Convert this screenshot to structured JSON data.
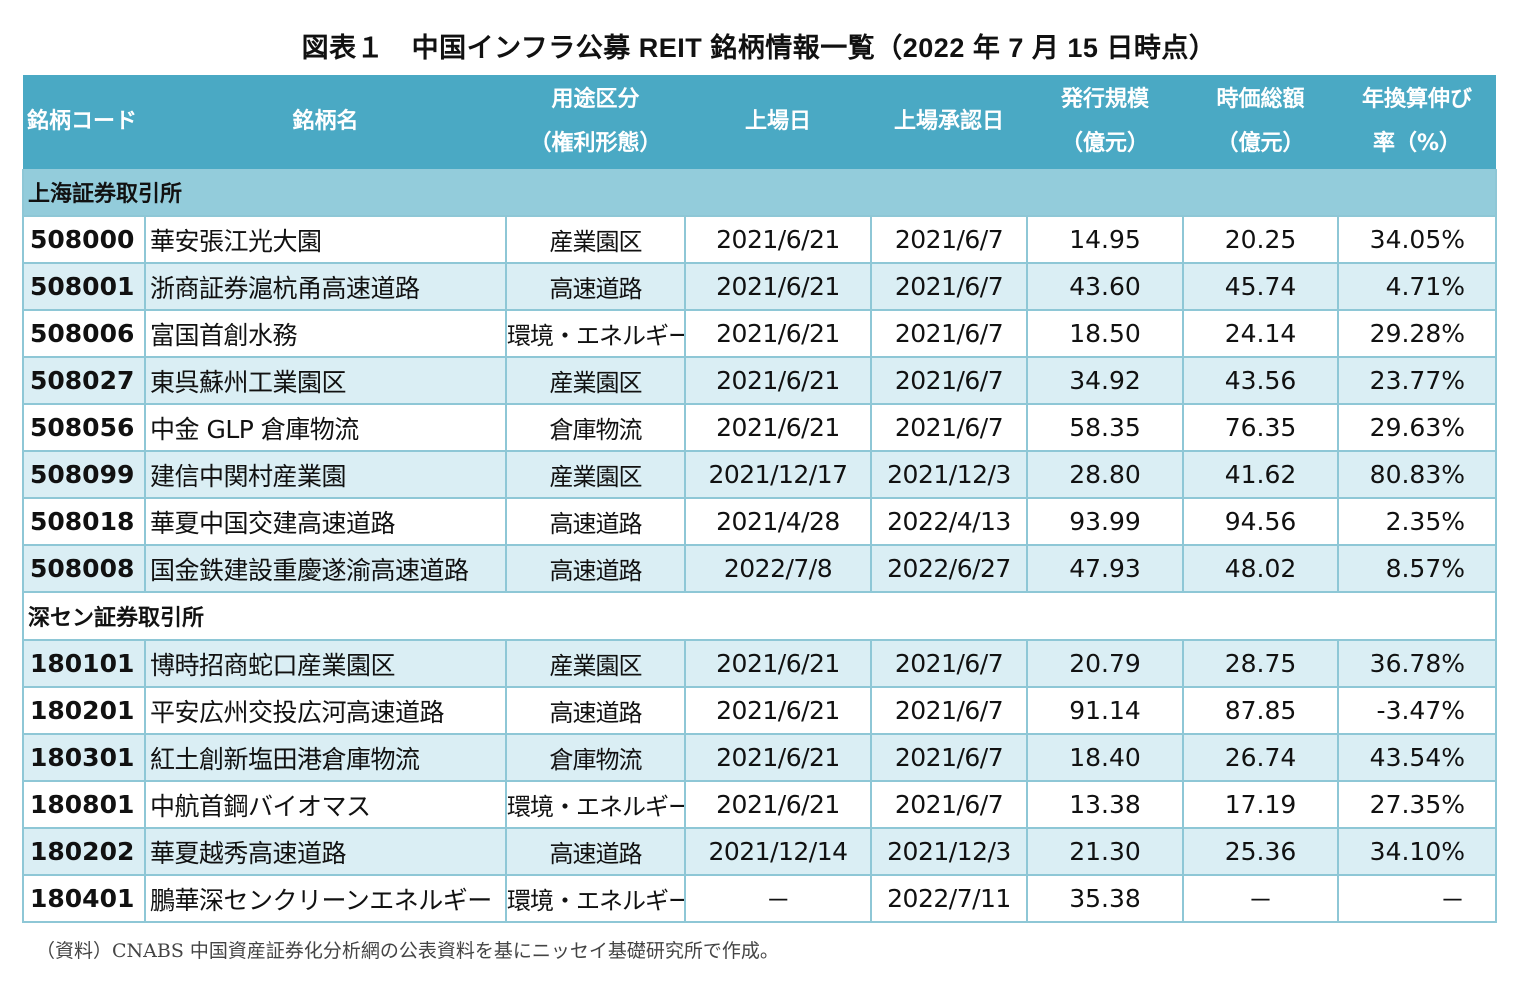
{
  "title": "図表１　中国インフラ公募 REIT 銘柄情報一覧（2022 年 7 月 15 日時点）",
  "colors": {
    "header_bg": "#4aa9c4",
    "header_text": "#ffffff",
    "section_bg_shanghai": "#93ccdb",
    "row_alt_bg": "#daeef4",
    "border": "#8ec7d6"
  },
  "table": {
    "headers": [
      {
        "line1": "銘柄コード",
        "line2": ""
      },
      {
        "line1": "銘柄名",
        "line2": ""
      },
      {
        "line1": "用途区分",
        "line2": "（権利形態）"
      },
      {
        "line1": "上場日",
        "line2": ""
      },
      {
        "line1": "上場承認日",
        "line2": ""
      },
      {
        "line1": "発行規模",
        "line2": "（億元）"
      },
      {
        "line1": "時価総額",
        "line2": "（億元）"
      },
      {
        "line1": "年換算伸び",
        "line2": "率（%）"
      }
    ],
    "sections": [
      {
        "label": "上海証券取引所",
        "rows": [
          {
            "code": "508000",
            "name": "華安張江光大園",
            "use": "産業園区",
            "listing_date": "2021/6/21",
            "approval_date": "2021/6/7",
            "issue_size": "14.95",
            "market_cap": "20.25",
            "growth": "34.05%"
          },
          {
            "code": "508001",
            "name": "浙商証券滬杭甬高速道路",
            "use": "高速道路",
            "listing_date": "2021/6/21",
            "approval_date": "2021/6/7",
            "issue_size": "43.60",
            "market_cap": "45.74",
            "growth": "4.71%"
          },
          {
            "code": "508006",
            "name": "富国首創水務",
            "use": "環境・エネルギー",
            "listing_date": "2021/6/21",
            "approval_date": "2021/6/7",
            "issue_size": "18.50",
            "market_cap": "24.14",
            "growth": "29.28%"
          },
          {
            "code": "508027",
            "name": "東呉蘇州工業園区",
            "use": "産業園区",
            "listing_date": "2021/6/21",
            "approval_date": "2021/6/7",
            "issue_size": "34.92",
            "market_cap": "43.56",
            "growth": "23.77%"
          },
          {
            "code": "508056",
            "name": "中金 GLP 倉庫物流",
            "use": "倉庫物流",
            "listing_date": "2021/6/21",
            "approval_date": "2021/6/7",
            "issue_size": "58.35",
            "market_cap": "76.35",
            "growth": "29.63%"
          },
          {
            "code": "508099",
            "name": "建信中関村産業園",
            "use": "産業園区",
            "listing_date": "2021/12/17",
            "approval_date": "2021/12/3",
            "issue_size": "28.80",
            "market_cap": "41.62",
            "growth": "80.83%"
          },
          {
            "code": "508018",
            "name": "華夏中国交建高速道路",
            "use": "高速道路",
            "listing_date": "2021/4/28",
            "approval_date": "2022/4/13",
            "issue_size": "93.99",
            "market_cap": "94.56",
            "growth": "2.35%"
          },
          {
            "code": "508008",
            "name": "国金鉄建設重慶遂渝高速道路",
            "use": "高速道路",
            "listing_date": "2022/7/8",
            "approval_date": "2022/6/27",
            "issue_size": "47.93",
            "market_cap": "48.02",
            "growth": "8.57%"
          }
        ]
      },
      {
        "label": "深セン証券取引所",
        "rows": [
          {
            "code": "180101",
            "name": "博時招商蛇口産業園区",
            "use": "産業園区",
            "listing_date": "2021/6/21",
            "approval_date": "2021/6/7",
            "issue_size": "20.79",
            "market_cap": "28.75",
            "growth": "36.78%"
          },
          {
            "code": "180201",
            "name": "平安広州交投広河高速道路",
            "use": "高速道路",
            "listing_date": "2021/6/21",
            "approval_date": "2021/6/7",
            "issue_size": "91.14",
            "market_cap": "87.85",
            "growth": "-3.47%"
          },
          {
            "code": "180301",
            "name": "紅土創新塩田港倉庫物流",
            "use": "倉庫物流",
            "listing_date": "2021/6/21",
            "approval_date": "2021/6/7",
            "issue_size": "18.40",
            "market_cap": "26.74",
            "growth": "43.54%"
          },
          {
            "code": "180801",
            "name": "中航首鋼バイオマス",
            "use": "環境・エネルギー",
            "listing_date": "2021/6/21",
            "approval_date": "2021/6/7",
            "issue_size": "13.38",
            "market_cap": "17.19",
            "growth": "27.35%"
          },
          {
            "code": "180202",
            "name": "華夏越秀高速道路",
            "use": "高速道路",
            "listing_date": "2021/12/14",
            "approval_date": "2021/12/3",
            "issue_size": "21.30",
            "market_cap": "25.36",
            "growth": "34.10%"
          },
          {
            "code": "180401",
            "name": "鵬華深センクリーンエネルギー",
            "use": "環境・エネルギー",
            "listing_date": "－",
            "approval_date": "2022/7/11",
            "issue_size": "35.38",
            "market_cap": "－",
            "growth": "－"
          }
        ]
      }
    ]
  },
  "footnote": "（資料）CNABS 中国資産証券化分析網の公表資料を基にニッセイ基礎研究所で作成。"
}
